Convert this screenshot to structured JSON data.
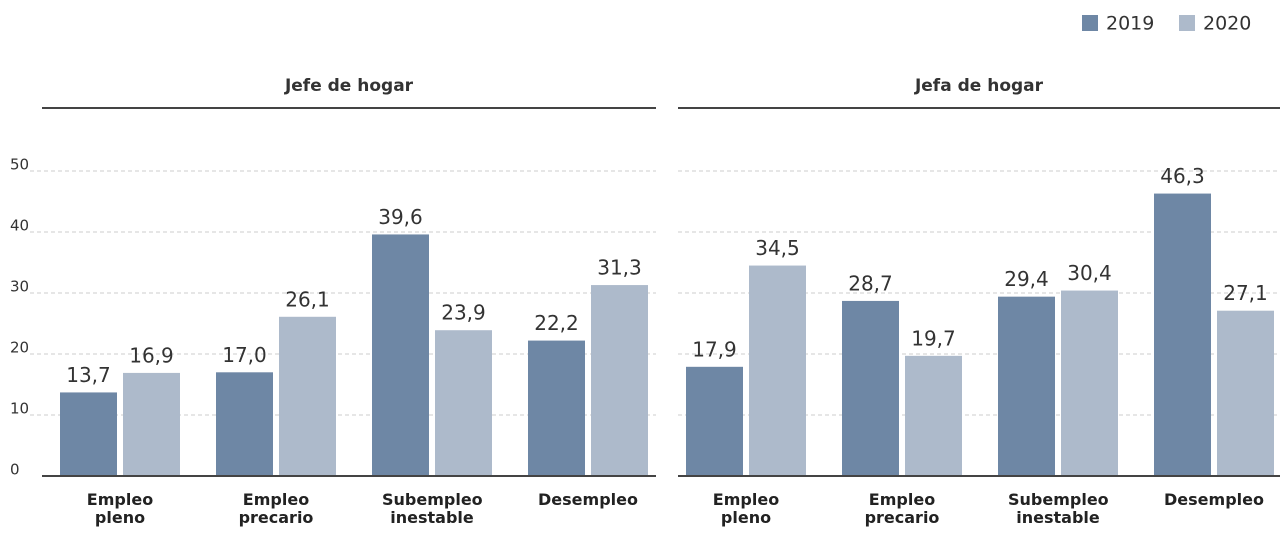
{
  "chart_data": [
    {
      "type": "bar",
      "title": "Jefe de hogar",
      "categories": [
        "Empleo pleno",
        "Empleo precario",
        "Subempleo inestable",
        "Desempleo"
      ],
      "series": [
        {
          "name": "2019",
          "color": "#6e87a5",
          "values": [
            13.7,
            17.0,
            39.6,
            22.2
          ],
          "value_labels": [
            "13,7",
            "17,0",
            "39,6",
            "22,2"
          ]
        },
        {
          "name": "2020",
          "color": "#adbacb",
          "values": [
            16.9,
            26.1,
            23.9,
            31.3
          ],
          "value_labels": [
            "16,9",
            "26,1",
            "23,9",
            "31,3"
          ]
        }
      ],
      "ylim": [
        0,
        50
      ],
      "yticks": [
        0,
        10,
        20,
        30,
        40,
        50
      ],
      "grid": true,
      "legend": "top-right"
    },
    {
      "type": "bar",
      "title": "Jefa de hogar",
      "categories": [
        "Empleo pleno",
        "Empleo precario",
        "Subempleo inestable",
        "Desempleo"
      ],
      "series": [
        {
          "color": "#6e87a5",
          "values": [
            17.9,
            28.7,
            29.4,
            46.3
          ],
          "value_labels": [
            "17,9",
            "28,7",
            "29,4",
            "46,3"
          ]
        },
        {
          "color": "#adbacb",
          "values": [
            34.5,
            19.7,
            30.4,
            27.1
          ],
          "value_labels": [
            "34,5",
            "19,7",
            "30,4",
            "27,1"
          ]
        }
      ],
      "ylim": [
        0,
        50
      ],
      "yticks": [
        0,
        10,
        20,
        30,
        40,
        50
      ],
      "grid": true
    }
  ]
}
